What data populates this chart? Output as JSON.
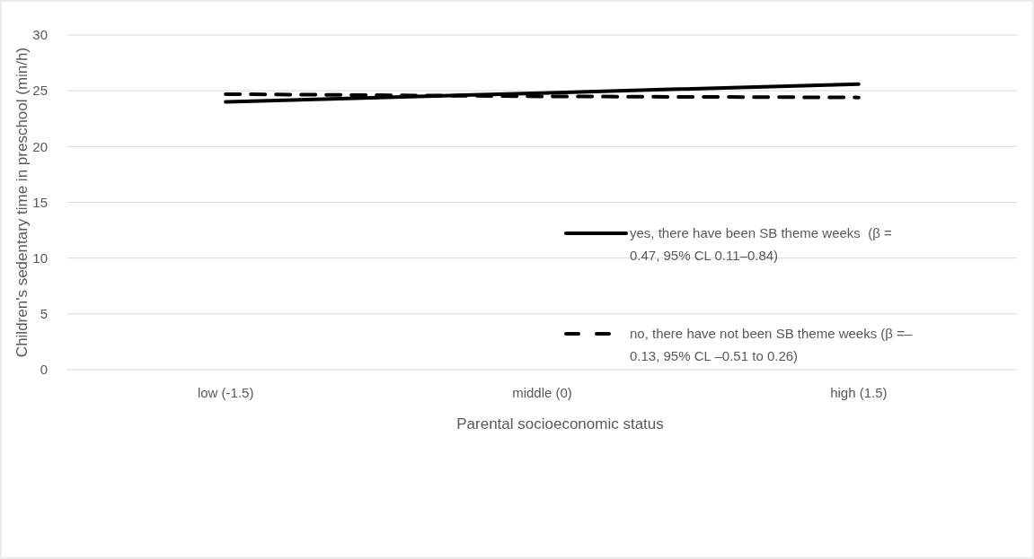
{
  "chart_data": {
    "type": "line",
    "xlabel": "Parental socioeconomic status",
    "ylabel": "Children's sedentary time in preschool (min/h)",
    "categories": [
      "low (-1.5)",
      "middle (0)",
      "high (1.5)"
    ],
    "series": [
      {
        "name": "yes, there have been SB theme weeks  (β = 0.47, 95% CL 0.11–0.84)",
        "color": "#000000",
        "line_style": "solid",
        "values": [
          24.0,
          24.8,
          25.6
        ]
      },
      {
        "name": "no, there have not been SB theme weeks (β =– 0.13, 95% CL –0.51 to 0.26)",
        "color": "#000000",
        "line_style": "dashed",
        "values": [
          24.7,
          24.5,
          24.4
        ]
      }
    ],
    "ylim": [
      0,
      30
    ],
    "yticks": [
      0,
      5,
      10,
      15,
      20,
      25,
      30
    ],
    "grid": "y",
    "legend": "right",
    "marker": "none"
  }
}
